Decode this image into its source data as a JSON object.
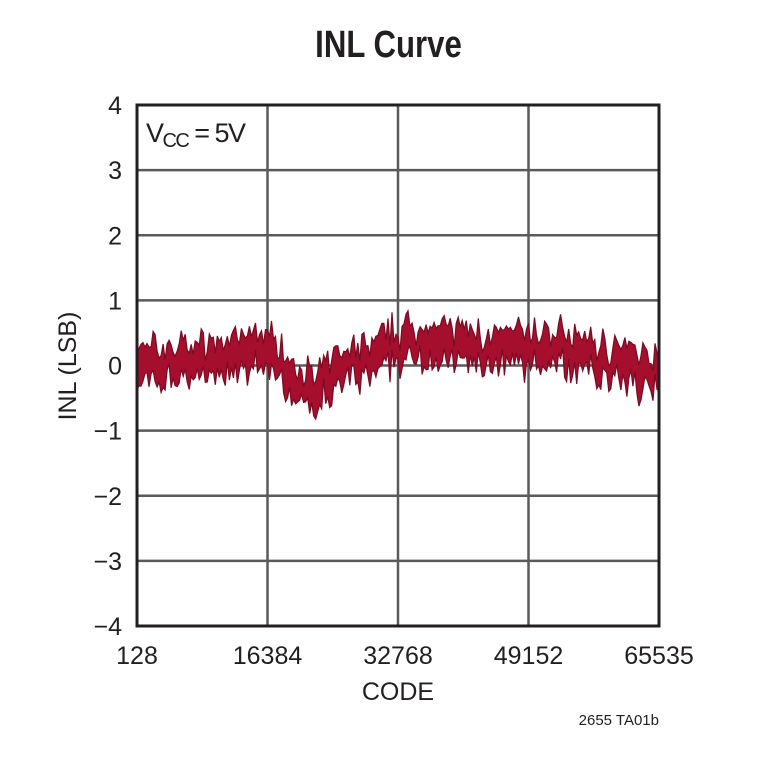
{
  "chart_data": {
    "type": "line",
    "title": "INL Curve",
    "xlabel": "CODE",
    "ylabel": "INL (LSB)",
    "xlim": [
      128,
      65535
    ],
    "ylim": [
      -4,
      4
    ],
    "x_ticks": [
      "128",
      "16384",
      "32768",
      "49152",
      "65535"
    ],
    "y_ticks": [
      "4",
      "3",
      "2",
      "1",
      "0",
      "−1",
      "−2",
      "−3",
      "−4"
    ],
    "grid": true,
    "annotation": {
      "main": "V",
      "sub": "CC",
      "rest": " = 5V"
    },
    "footnote": "2655 TA01b",
    "series": [
      {
        "name": "INL",
        "color": "#a50e2d",
        "x": [
          128,
          4096,
          8192,
          12288,
          16384,
          18432,
          20480,
          22528,
          24576,
          28672,
          32768,
          36864,
          40960,
          45056,
          49152,
          53248,
          57344,
          61440,
          65535
        ],
        "y": [
          0.0,
          0.05,
          0.1,
          0.1,
          0.3,
          0.0,
          -0.3,
          -0.45,
          -0.1,
          0.05,
          0.3,
          0.35,
          0.3,
          0.2,
          0.25,
          0.25,
          0.1,
          0.0,
          -0.1
        ],
        "noise_band_lsb": 0.35
      }
    ]
  },
  "colors": {
    "trace": "#a50e2d",
    "trace_dark": "#6e0a20",
    "grid": "#5a5a5a",
    "axis": "#231f20"
  }
}
